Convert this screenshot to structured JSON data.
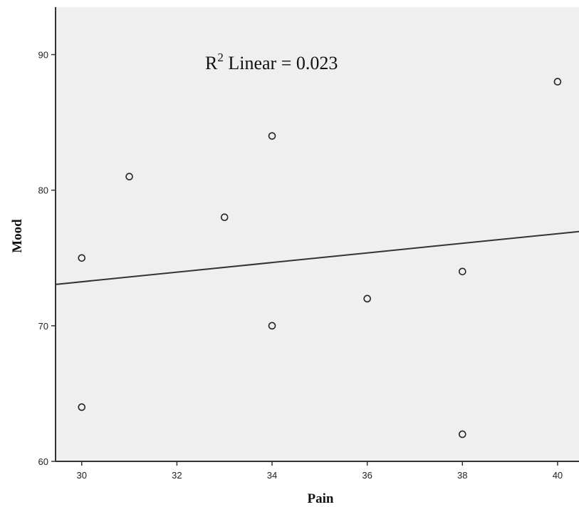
{
  "chart_data": {
    "type": "scatter",
    "xlabel": "Pain",
    "ylabel": "Mood",
    "xlim": [
      29.45,
      40.45
    ],
    "ylim": [
      60,
      93.5
    ],
    "x_ticks": [
      "30",
      "32",
      "34",
      "36",
      "38",
      "40"
    ],
    "y_ticks": [
      "60",
      "70",
      "80",
      "90"
    ],
    "points": [
      {
        "x": 30,
        "y": 75
      },
      {
        "x": 30,
        "y": 64
      },
      {
        "x": 31,
        "y": 81
      },
      {
        "x": 33,
        "y": 78
      },
      {
        "x": 34,
        "y": 84
      },
      {
        "x": 34,
        "y": 70
      },
      {
        "x": 36,
        "y": 72
      },
      {
        "x": 38,
        "y": 74
      },
      {
        "x": 38,
        "y": 62
      },
      {
        "x": 40,
        "y": 88
      }
    ],
    "fit_line": {
      "type": "linear",
      "x": [
        29.45,
        40.45
      ],
      "y": [
        73.05,
        76.95
      ]
    },
    "annotation": {
      "r": "R",
      "sup": "2",
      "text": " Linear = 0.023"
    },
    "grid": false,
    "legend": "none",
    "colors": {
      "plot_background": "#efefef",
      "axis": "#333333",
      "marker_stroke": "#222222",
      "fit_line": "#333333"
    }
  }
}
